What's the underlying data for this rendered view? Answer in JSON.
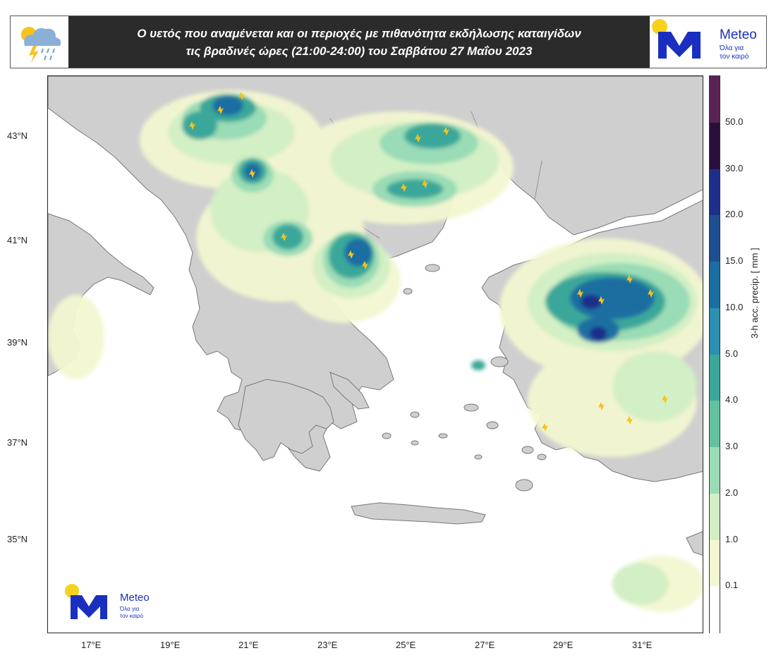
{
  "header": {
    "title_line1": "Ο υετός που αναμένεται και οι περιοχές με πιθανότητα εκδήλωσης καταιγίδων",
    "title_line2": "τις βραδινές ώρες (21:00-24:00) του Σαββάτου 27 Μαΐου 2023",
    "weather_icon": "storm-cloud-icon"
  },
  "logo": {
    "name": "Meteo",
    "tagline_1": "Όλα για",
    "tagline_2": "τον καιρό",
    "colors": {
      "blue": "#1a2fbf",
      "yellow": "#f7d21c"
    }
  },
  "map": {
    "lat_labels": [
      "43°N",
      "41°N",
      "39°N",
      "37°N",
      "35°N"
    ],
    "lon_labels": [
      "17°E",
      "19°E",
      "21°E",
      "23°E",
      "25°E",
      "27°E",
      "29°E",
      "31°E"
    ],
    "land_color": "#cfcfcf",
    "sea_color": "#ffffff"
  },
  "colorbar": {
    "title": "3-h acc. precip. [ mm ]",
    "labels": [
      "50.0",
      "30.0",
      "20.0",
      "15.0",
      "10.0",
      "5.0",
      "4.0",
      "3.0",
      "2.0",
      "1.0",
      "0.1"
    ],
    "colors": [
      "#5a2356",
      "#2a0f3c",
      "#1d2f8a",
      "#1d4e8f",
      "#1a6ea1",
      "#2b8fb0",
      "#3aa79a",
      "#63c1a0",
      "#9adcb5",
      "#d3efc5",
      "#f3f7d0",
      "#ffffff"
    ]
  }
}
